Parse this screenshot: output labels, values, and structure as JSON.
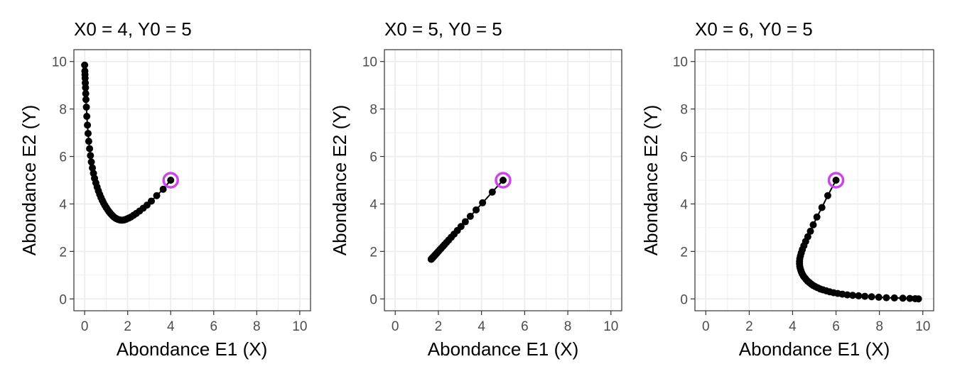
{
  "figure": {
    "background": "#ffffff"
  },
  "chart_data": [
    {
      "type": "line",
      "title": "X0 = 4, Y0 = 5",
      "xlabel": "Abondance E1 (X)",
      "ylabel": "Abondance E2 (Y)",
      "xlim": [
        -0.5,
        10.5
      ],
      "ylim": [
        -0.5,
        10.5
      ],
      "xticks": [
        0,
        2,
        4,
        6,
        8,
        10
      ],
      "yticks": [
        0,
        2,
        4,
        6,
        8,
        10
      ],
      "grid": true,
      "point_color": "#000000",
      "start_marker_color": "#cc44ee",
      "start": [
        4,
        5
      ],
      "series": [
        {
          "x": [
            4.0,
            3.65,
            3.35,
            3.1,
            2.9,
            2.72,
            2.55,
            2.4,
            2.27,
            2.15,
            2.04,
            1.94,
            1.85,
            1.77,
            1.69,
            1.62,
            1.55,
            1.48,
            1.42,
            1.36,
            1.3,
            1.24,
            1.18,
            1.12,
            1.06,
            1.0,
            0.94,
            0.88,
            0.82,
            0.76,
            0.7,
            0.64,
            0.58,
            0.52,
            0.46,
            0.41,
            0.36,
            0.31,
            0.27,
            0.23,
            0.19,
            0.16,
            0.13,
            0.1,
            0.08,
            0.06,
            0.05,
            0.04,
            0.03,
            0.02,
            0.015,
            0.01,
            0.0
          ],
          "y": [
            5.0,
            4.62,
            4.35,
            4.12,
            3.95,
            3.82,
            3.7,
            3.6,
            3.52,
            3.45,
            3.4,
            3.36,
            3.33,
            3.32,
            3.32,
            3.33,
            3.35,
            3.38,
            3.41,
            3.45,
            3.5,
            3.56,
            3.62,
            3.69,
            3.77,
            3.85,
            3.94,
            4.04,
            4.15,
            4.27,
            4.4,
            4.55,
            4.71,
            4.89,
            5.08,
            5.29,
            5.52,
            5.77,
            6.04,
            6.33,
            6.64,
            6.97,
            7.32,
            7.69,
            8.08,
            8.4,
            8.65,
            8.9,
            9.1,
            9.3,
            9.45,
            9.6,
            9.85
          ]
        }
      ]
    },
    {
      "type": "line",
      "title": "X0 = 5, Y0 = 5",
      "xlabel": "Abondance E1 (X)",
      "ylabel": "Abondance E2 (Y)",
      "xlim": [
        -0.5,
        10.5
      ],
      "ylim": [
        -0.5,
        10.5
      ],
      "xticks": [
        0,
        2,
        4,
        6,
        8,
        10
      ],
      "yticks": [
        0,
        2,
        4,
        6,
        8,
        10
      ],
      "grid": true,
      "point_color": "#000000",
      "start_marker_color": "#cc44ee",
      "start": [
        5,
        5
      ],
      "series": [
        {
          "x": [
            5.0,
            4.5,
            4.05,
            3.75,
            3.48,
            3.25,
            3.05,
            2.88,
            2.73,
            2.6,
            2.48,
            2.38,
            2.29,
            2.21,
            2.14,
            2.08,
            2.02,
            1.97,
            1.93,
            1.89,
            1.86,
            1.83,
            1.8,
            1.78,
            1.76,
            1.74,
            1.73,
            1.72,
            1.71,
            1.7,
            1.69,
            1.68,
            1.675,
            1.67
          ],
          "y": [
            5.0,
            4.5,
            4.05,
            3.75,
            3.48,
            3.25,
            3.05,
            2.88,
            2.73,
            2.6,
            2.48,
            2.38,
            2.29,
            2.21,
            2.14,
            2.08,
            2.02,
            1.97,
            1.93,
            1.89,
            1.86,
            1.83,
            1.8,
            1.78,
            1.76,
            1.74,
            1.73,
            1.72,
            1.71,
            1.7,
            1.69,
            1.68,
            1.675,
            1.67
          ]
        }
      ]
    },
    {
      "type": "line",
      "title": "X0 = 6, Y0 = 5",
      "xlabel": "Abondance E1 (X)",
      "ylabel": "Abondance E2 (Y)",
      "xlim": [
        -0.5,
        10.5
      ],
      "ylim": [
        -0.5,
        10.5
      ],
      "xticks": [
        0,
        2,
        4,
        6,
        8,
        10
      ],
      "yticks": [
        0,
        2,
        4,
        6,
        8,
        10
      ],
      "grid": true,
      "point_color": "#000000",
      "start_marker_color": "#cc44ee",
      "start": [
        6,
        5
      ],
      "series": [
        {
          "x": [
            6.0,
            5.62,
            5.35,
            5.12,
            4.95,
            4.82,
            4.7,
            4.6,
            4.52,
            4.45,
            4.4,
            4.36,
            4.33,
            4.32,
            4.32,
            4.33,
            4.35,
            4.38,
            4.41,
            4.45,
            4.5,
            4.56,
            4.62,
            4.69,
            4.77,
            4.85,
            4.94,
            5.04,
            5.15,
            5.27,
            5.4,
            5.55,
            5.71,
            5.89,
            6.08,
            6.29,
            6.52,
            6.77,
            7.04,
            7.33,
            7.64,
            7.97,
            8.32,
            8.69,
            9.08,
            9.4,
            9.65,
            9.8
          ],
          "y": [
            5.0,
            4.35,
            3.85,
            3.45,
            3.12,
            2.85,
            2.62,
            2.42,
            2.24,
            2.08,
            1.94,
            1.81,
            1.69,
            1.58,
            1.48,
            1.38,
            1.29,
            1.2,
            1.12,
            1.04,
            0.96,
            0.89,
            0.82,
            0.75,
            0.69,
            0.63,
            0.57,
            0.52,
            0.47,
            0.42,
            0.38,
            0.34,
            0.3,
            0.26,
            0.23,
            0.2,
            0.17,
            0.15,
            0.13,
            0.11,
            0.09,
            0.07,
            0.05,
            0.04,
            0.03,
            0.02,
            0.01,
            0.0
          ]
        }
      ]
    }
  ]
}
